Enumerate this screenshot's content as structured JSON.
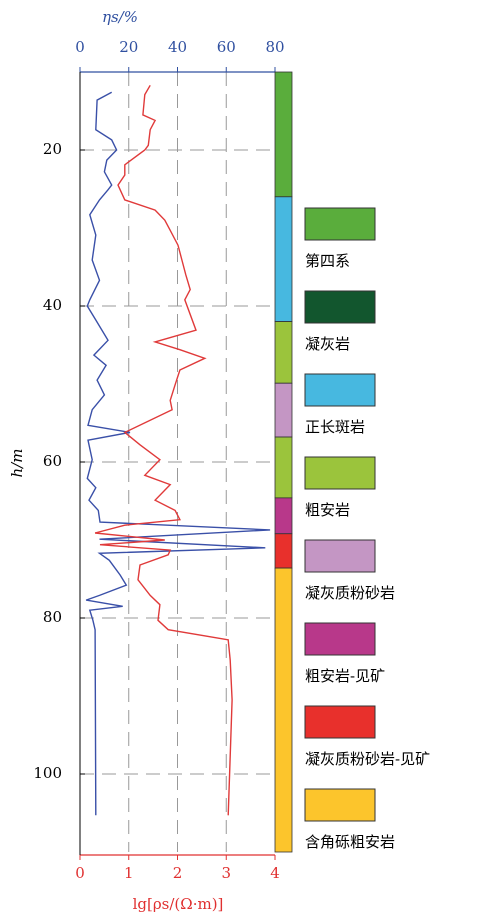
{
  "chart_data": {
    "type": "well-log",
    "y_label": "h/m",
    "ylim": [
      10,
      110
    ],
    "yticks": [
      20,
      40,
      60,
      80,
      100
    ],
    "y_inverted": true,
    "x_label": "lg[ρs/(Ω·m)]",
    "xlim": [
      0,
      4
    ],
    "xticks": [
      0,
      1,
      2,
      3,
      4
    ],
    "x_color": "#e03030",
    "x2_label": "ηs/%",
    "x2lim": [
      0,
      80
    ],
    "x2ticks": [
      0,
      20,
      40,
      60,
      80
    ],
    "x2_color": "#3050a0",
    "grid": true,
    "series": [
      {
        "color": "#3a50a8",
        "axis": "x2",
        "depth": [
          12.6,
          13.6,
          17.4,
          18.7,
          20,
          21.3,
          22.8,
          24.5,
          25.1,
          26.4,
          28.3,
          30.9,
          34.1,
          36.7,
          39.2,
          40,
          41.8,
          44.4,
          46.3,
          47.6,
          49.5,
          51.4,
          53.3,
          55.3,
          56.2,
          57.2,
          59.7,
          62.1,
          63.3,
          64.9,
          66.2,
          67.7,
          68.7,
          69.9,
          71,
          71.7,
          72.6,
          74.5,
          75.8,
          77.1,
          77.7,
          78.5,
          79,
          80.3,
          81.5,
          105.3
        ],
        "values": [
          13,
          7,
          6.5,
          13,
          15,
          11,
          10,
          13,
          11.5,
          8,
          4,
          6.5,
          5,
          8,
          4,
          3,
          6.5,
          11.5,
          5.7,
          10.7,
          7,
          10,
          5,
          3.3,
          20.5,
          3.3,
          5,
          3,
          6.5,
          3.7,
          7.5,
          8.2,
          78,
          8,
          76,
          8,
          12,
          16.5,
          19,
          8,
          2.5,
          17.5,
          4,
          5.3,
          6.2,
          6.5
        ]
      },
      {
        "color": "#e03a3a",
        "axis": "x",
        "depth": [
          11.7,
          12.9,
          15.5,
          16.2,
          17.4,
          19.4,
          20,
          21.9,
          23.2,
          24.5,
          26.4,
          27.7,
          29,
          30.3,
          32.2,
          34.1,
          36,
          37.9,
          39.2,
          43.1,
          44.6,
          45.6,
          46.7,
          48.2,
          50.1,
          52.1,
          53.3,
          56.2,
          57.8,
          59.7,
          61.7,
          62.9,
          64.9,
          66.2,
          67.4,
          68.1,
          69.1,
          70,
          70.6,
          71.3,
          71.9,
          73.2,
          75.1,
          77.1,
          78.3,
          80.3,
          81.5,
          82.8,
          85.4,
          90.5,
          105.3
        ],
        "values": [
          1.44,
          1.33,
          1.29,
          1.54,
          1.44,
          1.4,
          1.33,
          0.92,
          0.92,
          0.78,
          0.92,
          1.54,
          1.74,
          1.85,
          2.01,
          2.09,
          2.17,
          2.26,
          2.15,
          2.38,
          1.54,
          2.05,
          2.56,
          2.05,
          1.95,
          1.85,
          1.89,
          0.92,
          1.23,
          1.64,
          1.33,
          1.85,
          1.54,
          1.95,
          2.05,
          0.92,
          0.31,
          1.74,
          0.41,
          1.85,
          1.81,
          1.23,
          1.19,
          1.44,
          1.64,
          1.6,
          1.81,
          3.04,
          3.08,
          3.12,
          3.04
        ]
      }
    ],
    "column": [
      {
        "top": 10,
        "bottom": 26,
        "color": "#5aad3c"
      },
      {
        "top": 26,
        "bottom": 42,
        "color": "#47b8e0"
      },
      {
        "top": 42,
        "bottom": 49.9,
        "color": "#9bc43c"
      },
      {
        "top": 49.9,
        "bottom": 56.8,
        "color": "#c496c4"
      },
      {
        "top": 56.8,
        "bottom": 64.6,
        "color": "#9bc43c"
      },
      {
        "top": 64.6,
        "bottom": 69.2,
        "color": "#b8388a"
      },
      {
        "top": 69.2,
        "bottom": 73.6,
        "color": "#e8302c"
      },
      {
        "top": 73.6,
        "bottom": 110,
        "color": "#fcc52c"
      }
    ],
    "legend": [
      {
        "name": "第四系",
        "color": "#5aad3c"
      },
      {
        "name": "凝灰岩",
        "color": "#12562e"
      },
      {
        "name": "正长斑岩",
        "color": "#47b8e0"
      },
      {
        "name": "粗安岩",
        "color": "#9bc43c"
      },
      {
        "name": "凝灰质粉砂岩",
        "color": "#c496c4"
      },
      {
        "name": "粗安岩-见矿",
        "color": "#b8388a"
      },
      {
        "name": "凝灰质粉砂岩-见矿",
        "color": "#e8302c"
      },
      {
        "name": "含角砾粗安岩",
        "color": "#fcc52c"
      }
    ]
  }
}
